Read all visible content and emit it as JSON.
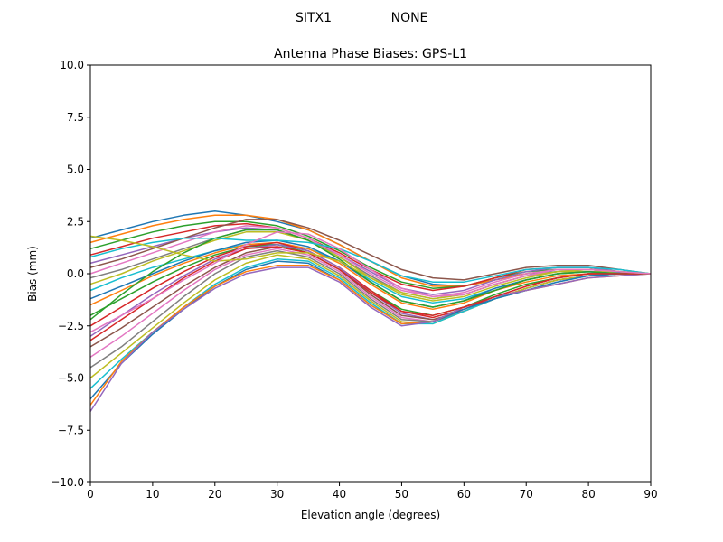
{
  "header": {
    "station": "SITX1",
    "radome": "NONE"
  },
  "chart_data": {
    "type": "line",
    "title": "Antenna Phase Biases: GPS-L1",
    "xlabel": "Elevation angle (degrees)",
    "ylabel": "Bias (mm)",
    "xlim": [
      0,
      90
    ],
    "ylim": [
      -10,
      10
    ],
    "x_ticks": [
      "0",
      "10",
      "20",
      "30",
      "40",
      "50",
      "60",
      "70",
      "80",
      "90"
    ],
    "y_ticks": [
      "−10.0",
      "−7.5",
      "−5.0",
      "−2.5",
      "0.0",
      "2.5",
      "5.0",
      "7.5",
      "10.0"
    ],
    "grid": false,
    "x": [
      0,
      5,
      10,
      15,
      20,
      25,
      30,
      35,
      40,
      45,
      50,
      55,
      60,
      65,
      70,
      75,
      80,
      85,
      90
    ],
    "series": [
      {
        "color": "#1f77b4",
        "values": [
          1.7,
          2.1,
          2.5,
          2.8,
          3.0,
          2.8,
          2.5,
          2.1,
          1.4,
          0.6,
          -0.1,
          -0.5,
          -0.6,
          -0.3,
          0.0,
          0.1,
          0.1,
          0.05,
          0.0
        ]
      },
      {
        "color": "#ff7f0e",
        "values": [
          1.5,
          1.9,
          2.3,
          2.6,
          2.8,
          2.8,
          2.6,
          2.1,
          1.4,
          0.6,
          -0.2,
          -0.6,
          -0.6,
          -0.3,
          0.0,
          0.2,
          0.2,
          0.1,
          0.0
        ]
      },
      {
        "color": "#2ca02c",
        "values": [
          1.2,
          1.6,
          2.0,
          2.3,
          2.5,
          2.5,
          2.3,
          1.8,
          1.1,
          0.3,
          -0.4,
          -0.7,
          -0.6,
          -0.2,
          0.1,
          0.2,
          0.2,
          0.1,
          0.0
        ]
      },
      {
        "color": "#d62728",
        "values": [
          0.9,
          1.3,
          1.7,
          2.0,
          2.3,
          2.4,
          2.2,
          1.7,
          1.0,
          0.2,
          -0.5,
          -0.8,
          -0.6,
          -0.2,
          0.2,
          0.3,
          0.3,
          0.1,
          0.0
        ]
      },
      {
        "color": "#9467bd",
        "values": [
          0.5,
          0.9,
          1.3,
          1.7,
          2.0,
          2.2,
          2.1,
          1.6,
          0.9,
          0.1,
          -0.7,
          -1.0,
          -0.8,
          -0.3,
          0.1,
          0.3,
          0.3,
          0.1,
          0.0
        ]
      },
      {
        "color": "#8c564b",
        "values": [
          0.3,
          0.7,
          1.2,
          1.7,
          2.2,
          2.6,
          2.6,
          2.2,
          1.6,
          0.9,
          0.2,
          -0.2,
          -0.3,
          0.0,
          0.3,
          0.4,
          0.4,
          0.2,
          0.0
        ]
      },
      {
        "color": "#e377c2",
        "values": [
          0.0,
          0.5,
          1.0,
          1.5,
          2.0,
          2.3,
          2.2,
          1.7,
          0.9,
          0.0,
          -0.8,
          -1.1,
          -0.9,
          -0.4,
          0.0,
          0.2,
          0.2,
          0.1,
          0.0
        ]
      },
      {
        "color": "#7f7f7f",
        "values": [
          -0.2,
          0.2,
          0.7,
          1.2,
          1.7,
          2.1,
          2.1,
          1.6,
          0.8,
          -0.1,
          -0.9,
          -1.2,
          -1.0,
          -0.5,
          -0.1,
          0.1,
          0.2,
          0.1,
          0.0
        ]
      },
      {
        "color": "#bcbd22",
        "values": [
          -0.5,
          0.0,
          0.6,
          1.1,
          1.6,
          2.0,
          2.0,
          1.6,
          0.8,
          -0.2,
          -1.0,
          -1.3,
          -1.1,
          -0.6,
          -0.2,
          0.1,
          0.1,
          0.1,
          0.0
        ]
      },
      {
        "color": "#17becf",
        "values": [
          -0.8,
          -0.2,
          0.3,
          0.7,
          1.1,
          1.4,
          1.4,
          1.2,
          0.6,
          -0.3,
          -1.1,
          -1.4,
          -1.2,
          -0.7,
          -0.3,
          0.0,
          0.1,
          0.0,
          0.0
        ]
      },
      {
        "color": "#1f77b4",
        "values": [
          -1.2,
          -0.6,
          0.0,
          0.6,
          1.1,
          1.5,
          1.6,
          1.3,
          0.6,
          -0.4,
          -1.3,
          -1.6,
          -1.3,
          -0.7,
          -0.3,
          0.0,
          0.1,
          0.0,
          0.0
        ]
      },
      {
        "color": "#ff7f0e",
        "values": [
          -1.5,
          -0.8,
          -0.1,
          0.5,
          1.0,
          1.4,
          1.5,
          1.2,
          0.5,
          -0.5,
          -1.4,
          -1.7,
          -1.4,
          -0.8,
          -0.4,
          -0.1,
          0.0,
          0.0,
          0.0
        ]
      },
      {
        "color": "#2ca02c",
        "values": [
          -2.0,
          -1.2,
          -0.4,
          0.3,
          0.9,
          1.3,
          1.4,
          1.0,
          0.2,
          -0.8,
          -1.7,
          -2.0,
          -1.6,
          -1.0,
          -0.5,
          -0.2,
          0.0,
          0.0,
          0.0
        ]
      },
      {
        "color": "#d62728",
        "values": [
          -2.5,
          -1.6,
          -0.7,
          0.1,
          0.8,
          1.3,
          1.5,
          1.1,
          0.3,
          -0.8,
          -1.8,
          -2.1,
          -1.7,
          -1.1,
          -0.6,
          -0.2,
          0.0,
          0.0,
          0.0
        ]
      },
      {
        "color": "#9467bd",
        "values": [
          -3.0,
          -2.0,
          -1.0,
          -0.1,
          0.7,
          1.2,
          1.4,
          1.1,
          0.3,
          -0.9,
          -1.9,
          -2.2,
          -1.8,
          -1.2,
          -0.7,
          -0.3,
          -0.1,
          0.0,
          0.0
        ]
      },
      {
        "color": "#8c564b",
        "values": [
          -3.5,
          -2.6,
          -1.6,
          -0.6,
          0.3,
          1.0,
          1.3,
          1.0,
          0.2,
          -1.0,
          -2.0,
          -2.2,
          -1.8,
          -1.2,
          -0.7,
          -0.3,
          -0.1,
          0.0,
          0.0
        ]
      },
      {
        "color": "#e377c2",
        "values": [
          -4.0,
          -3.0,
          -1.9,
          -0.8,
          0.2,
          0.9,
          1.2,
          0.9,
          0.1,
          -1.1,
          -2.1,
          -2.3,
          -1.8,
          -1.2,
          -0.7,
          -0.3,
          -0.1,
          0.0,
          0.0
        ]
      },
      {
        "color": "#7f7f7f",
        "values": [
          -4.5,
          -3.5,
          -2.3,
          -1.1,
          0.0,
          0.8,
          1.1,
          0.8,
          0.0,
          -1.2,
          -2.2,
          -2.3,
          -1.8,
          -1.2,
          -0.7,
          -0.3,
          -0.1,
          0.0,
          0.0
        ]
      },
      {
        "color": "#bcbd22",
        "values": [
          -5.0,
          -3.8,
          -2.6,
          -1.4,
          -0.3,
          0.5,
          0.9,
          0.7,
          -0.1,
          -1.3,
          -2.3,
          -2.4,
          -1.8,
          -1.2,
          -0.7,
          -0.3,
          -0.1,
          0.0,
          0.0
        ]
      },
      {
        "color": "#17becf",
        "values": [
          -5.5,
          -4.1,
          -2.8,
          -1.6,
          -0.5,
          0.3,
          0.7,
          0.6,
          -0.2,
          -1.4,
          -2.4,
          -2.4,
          -1.8,
          -1.2,
          -0.8,
          -0.4,
          -0.1,
          0.0,
          0.0
        ]
      },
      {
        "color": "#1f77b4",
        "values": [
          -6.0,
          -4.3,
          -2.9,
          -1.7,
          -0.6,
          0.2,
          0.6,
          0.5,
          -0.3,
          -1.5,
          -2.4,
          -2.3,
          -1.7,
          -1.2,
          -0.8,
          -0.4,
          -0.1,
          0.0,
          0.0
        ]
      },
      {
        "color": "#ff7f0e",
        "values": [
          -6.3,
          -4.2,
          -2.8,
          -1.6,
          -0.6,
          0.1,
          0.4,
          0.4,
          -0.3,
          -1.5,
          -2.4,
          -2.3,
          -1.6,
          -1.1,
          -0.8,
          -0.5,
          -0.2,
          -0.1,
          0.0
        ]
      },
      {
        "color": "#9467bd",
        "values": [
          -6.6,
          -4.3,
          -2.8,
          -1.7,
          -0.7,
          0.0,
          0.3,
          0.3,
          -0.4,
          -1.6,
          -2.5,
          -2.3,
          -1.6,
          -1.1,
          -0.8,
          -0.5,
          -0.2,
          -0.1,
          0.0
        ]
      },
      {
        "color": "#2ca02c",
        "values": [
          -2.2,
          -1.0,
          0.1,
          1.0,
          1.7,
          2.1,
          2.1,
          1.6,
          0.7,
          -0.4,
          -1.3,
          -1.6,
          -1.3,
          -0.8,
          -0.3,
          0.0,
          0.1,
          0.0,
          0.0
        ]
      },
      {
        "color": "#d62728",
        "values": [
          -3.2,
          -2.2,
          -1.2,
          -0.2,
          0.6,
          1.2,
          1.3,
          1.0,
          0.2,
          -0.9,
          -1.8,
          -2.0,
          -1.6,
          -1.1,
          -0.6,
          -0.2,
          0.0,
          0.0,
          0.0
        ]
      },
      {
        "color": "#17becf",
        "values": [
          0.8,
          1.2,
          1.5,
          1.7,
          1.7,
          1.6,
          1.6,
          1.5,
          1.2,
          0.6,
          -0.1,
          -0.4,
          -0.4,
          -0.1,
          0.2,
          0.3,
          0.3,
          0.2,
          0.0
        ]
      },
      {
        "color": "#bcbd22",
        "values": [
          1.8,
          1.6,
          1.3,
          0.9,
          0.6,
          0.7,
          1.0,
          1.0,
          0.6,
          -0.2,
          -0.9,
          -1.2,
          -1.0,
          -0.5,
          -0.1,
          0.1,
          0.2,
          0.1,
          0.0
        ]
      },
      {
        "color": "#e377c2",
        "values": [
          -2.8,
          -2.0,
          -1.2,
          -0.3,
          0.5,
          1.4,
          2.0,
          1.9,
          1.2,
          0.2,
          -0.7,
          -1.1,
          -1.0,
          -0.5,
          -0.1,
          0.2,
          0.2,
          0.1,
          0.0
        ]
      }
    ]
  }
}
